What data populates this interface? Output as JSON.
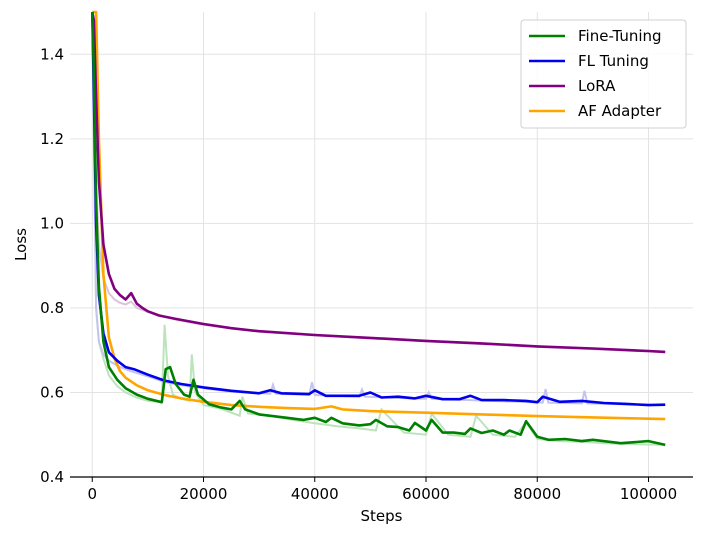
{
  "chart_data": {
    "type": "line",
    "xlabel": "Steps",
    "ylabel": "Loss",
    "xlim": [
      -4000,
      108000
    ],
    "ylim": [
      0.4,
      1.5
    ],
    "xticks": [
      0,
      20000,
      40000,
      60000,
      80000,
      100000
    ],
    "xtick_labels": [
      "0",
      "20000",
      "40000",
      "60000",
      "80000",
      "100000"
    ],
    "yticks": [
      0.4,
      0.6,
      0.8,
      1.0,
      1.2,
      1.4
    ],
    "ytick_labels": [
      "0.4",
      "0.6",
      "0.8",
      "1.0",
      "1.2",
      "1.4"
    ],
    "grid": true,
    "legend_position": "top-right",
    "series": [
      {
        "name": "Fine-Tuning",
        "color": "#008000",
        "x": [
          0,
          300,
          700,
          1200,
          2000,
          3000,
          4500,
          6000,
          8000,
          10000,
          12500,
          13200,
          14000,
          15000,
          16500,
          17500,
          18200,
          19000,
          21000,
          23000,
          25000,
          26500,
          27500,
          30000,
          35000,
          38000,
          40000,
          42000,
          43000,
          45000,
          48000,
          50000,
          51000,
          53000,
          55000,
          57000,
          58000,
          60000,
          61000,
          63000,
          65000,
          67000,
          68000,
          70000,
          72000,
          74000,
          75000,
          77000,
          78000,
          80000,
          82000,
          85000,
          88000,
          90000,
          95000,
          100000,
          103000
        ],
        "y": [
          1.5,
          1.35,
          1.05,
          0.85,
          0.72,
          0.66,
          0.63,
          0.61,
          0.595,
          0.585,
          0.577,
          0.655,
          0.66,
          0.62,
          0.595,
          0.59,
          0.63,
          0.595,
          0.572,
          0.565,
          0.56,
          0.58,
          0.56,
          0.548,
          0.54,
          0.535,
          0.54,
          0.53,
          0.54,
          0.527,
          0.522,
          0.525,
          0.535,
          0.52,
          0.518,
          0.51,
          0.528,
          0.51,
          0.535,
          0.505,
          0.505,
          0.502,
          0.515,
          0.504,
          0.51,
          0.5,
          0.51,
          0.5,
          0.532,
          0.495,
          0.488,
          0.49,
          0.485,
          0.488,
          0.48,
          0.485,
          0.476
        ]
      },
      {
        "name": "FL Tuning",
        "color": "#0000ee",
        "x": [
          0,
          300,
          700,
          1200,
          2000,
          3000,
          4500,
          6000,
          7500,
          10000,
          13000,
          16000,
          20000,
          25000,
          30000,
          32000,
          34000,
          39000,
          40000,
          42000,
          48000,
          50000,
          52000,
          55000,
          58000,
          60000,
          63000,
          66000,
          68000,
          70000,
          74000,
          78000,
          80000,
          81000,
          84000,
          88000,
          92000,
          96000,
          100000,
          103000
        ],
        "y": [
          1.5,
          1.3,
          1.0,
          0.83,
          0.74,
          0.695,
          0.675,
          0.66,
          0.655,
          0.642,
          0.628,
          0.62,
          0.612,
          0.604,
          0.598,
          0.605,
          0.598,
          0.596,
          0.605,
          0.592,
          0.592,
          0.6,
          0.588,
          0.59,
          0.586,
          0.592,
          0.584,
          0.584,
          0.592,
          0.582,
          0.582,
          0.58,
          0.577,
          0.59,
          0.578,
          0.58,
          0.575,
          0.573,
          0.57,
          0.571
        ]
      },
      {
        "name": "LoRA",
        "color": "#800080",
        "x": [
          0,
          300,
          700,
          1200,
          2000,
          3000,
          4000,
          5000,
          6000,
          7000,
          8000,
          9000,
          10000,
          12000,
          15000,
          20000,
          25000,
          30000,
          40000,
          50000,
          60000,
          70000,
          80000,
          90000,
          100000,
          103000
        ],
        "y": [
          1.5,
          1.48,
          1.3,
          1.1,
          0.95,
          0.88,
          0.845,
          0.83,
          0.82,
          0.835,
          0.81,
          0.8,
          0.792,
          0.782,
          0.774,
          0.762,
          0.752,
          0.745,
          0.736,
          0.729,
          0.722,
          0.716,
          0.709,
          0.704,
          0.698,
          0.696
        ]
      },
      {
        "name": "AF Adapter",
        "color": "#ffa500",
        "x": [
          0,
          700,
          1200,
          2000,
          3000,
          4000,
          5000,
          6000,
          8000,
          10000,
          13000,
          16000,
          20000,
          25000,
          30000,
          35000,
          40000,
          43000,
          45000,
          50000,
          60000,
          70000,
          80000,
          90000,
          100000,
          103000
        ],
        "y": [
          1.5,
          1.5,
          1.2,
          0.88,
          0.73,
          0.68,
          0.65,
          0.635,
          0.617,
          0.605,
          0.594,
          0.586,
          0.578,
          0.57,
          0.566,
          0.563,
          0.561,
          0.567,
          0.56,
          0.556,
          0.552,
          0.548,
          0.544,
          0.541,
          0.538,
          0.537
        ]
      }
    ],
    "raw_series": [
      {
        "color": "#bde3bd",
        "x": [
          0,
          300,
          700,
          1200,
          2000,
          3000,
          4500,
          6000,
          8000,
          10000,
          12500,
          13000,
          13600,
          14500,
          16000,
          17500,
          17900,
          18500,
          20000,
          23000,
          26500,
          27000,
          28000,
          32000,
          36000,
          40000,
          44000,
          48000,
          51000,
          52000,
          56000,
          60000,
          61000,
          64000,
          68000,
          69000,
          72000,
          76000,
          78000,
          80000,
          84000,
          88000,
          92000,
          96000,
          100000,
          103000
        ],
        "y": [
          1.5,
          1.2,
          0.8,
          0.72,
          0.68,
          0.64,
          0.615,
          0.6,
          0.588,
          0.58,
          0.577,
          0.76,
          0.64,
          0.595,
          0.585,
          0.58,
          0.69,
          0.6,
          0.57,
          0.562,
          0.545,
          0.59,
          0.55,
          0.545,
          0.535,
          0.527,
          0.52,
          0.515,
          0.51,
          0.56,
          0.505,
          0.5,
          0.55,
          0.5,
          0.495,
          0.545,
          0.5,
          0.495,
          0.53,
          0.49,
          0.485,
          0.483,
          0.48,
          0.478,
          0.477,
          0.476
        ]
      },
      {
        "color": "#c4c4ee",
        "x": [
          0,
          300,
          700,
          1200,
          2000,
          3000,
          5000,
          7000,
          10000,
          13000,
          16000,
          20000,
          25000,
          32000,
          32500,
          33000,
          39000,
          39500,
          40000,
          48000,
          48500,
          49000,
          60000,
          60500,
          61000,
          81000,
          81500,
          82000,
          88000,
          88500,
          89000,
          103000
        ],
        "y": [
          1.5,
          1.2,
          0.8,
          0.72,
          0.69,
          0.675,
          0.66,
          0.65,
          0.638,
          0.625,
          0.617,
          0.61,
          0.602,
          0.597,
          0.618,
          0.597,
          0.594,
          0.624,
          0.594,
          0.59,
          0.607,
          0.59,
          0.585,
          0.6,
          0.585,
          0.576,
          0.608,
          0.576,
          0.574,
          0.604,
          0.574,
          0.57
        ]
      },
      {
        "color": "#d9c4d9",
        "x": [
          0,
          300,
          700,
          1200,
          2000,
          3000,
          4000,
          5000,
          6000,
          7000,
          8000,
          10000,
          15000,
          20000,
          30000,
          40000,
          60000,
          80000,
          100000,
          103000
        ],
        "y": [
          1.5,
          1.3,
          1.1,
          0.95,
          0.87,
          0.835,
          0.82,
          0.812,
          0.808,
          0.815,
          0.8,
          0.79,
          0.772,
          0.76,
          0.744,
          0.735,
          0.721,
          0.708,
          0.697,
          0.695
        ]
      }
    ]
  }
}
